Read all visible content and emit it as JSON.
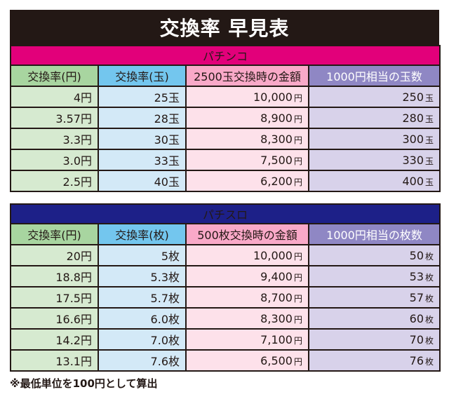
{
  "title": "交換率 早見表",
  "pachinko": {
    "section_title": "パチンコ",
    "section_color": "#e2007a",
    "headers": [
      "交換率(円)",
      "交換率(玉)",
      "2500玉交換時の金額",
      "1000円相当の玉数"
    ],
    "rows": [
      {
        "yen": "4円",
        "tama": "25玉",
        "amount": "10,000",
        "amount_unit": "円",
        "count": "250",
        "count_unit": "玉"
      },
      {
        "yen": "3.57円",
        "tama": "28玉",
        "amount": "8,900",
        "amount_unit": "円",
        "count": "280",
        "count_unit": "玉"
      },
      {
        "yen": "3.3円",
        "tama": "30玉",
        "amount": "8,300",
        "amount_unit": "円",
        "count": "300",
        "count_unit": "玉"
      },
      {
        "yen": "3.0円",
        "tama": "33玉",
        "amount": "7,500",
        "amount_unit": "円",
        "count": "330",
        "count_unit": "玉"
      },
      {
        "yen": "2.5円",
        "tama": "40玉",
        "amount": "6,200",
        "amount_unit": "円",
        "count": "400",
        "count_unit": "玉"
      }
    ]
  },
  "pachislot": {
    "section_title": "パチスロ",
    "section_color": "#1d2088",
    "headers": [
      "交換率(円)",
      "交換率(枚)",
      "500枚交換時の金額",
      "1000円相当の枚数"
    ],
    "rows": [
      {
        "yen": "20円",
        "tama": "5枚",
        "amount": "10,000",
        "amount_unit": "円",
        "count": "50",
        "count_unit": "枚"
      },
      {
        "yen": "18.8円",
        "tama": "5.3枚",
        "amount": "9,400",
        "amount_unit": "円",
        "count": "53",
        "count_unit": "枚"
      },
      {
        "yen": "17.5円",
        "tama": "5.7枚",
        "amount": "8,700",
        "amount_unit": "円",
        "count": "57",
        "count_unit": "枚"
      },
      {
        "yen": "16.6円",
        "tama": "6.0枚",
        "amount": "8,300",
        "amount_unit": "円",
        "count": "60",
        "count_unit": "枚"
      },
      {
        "yen": "14.2円",
        "tama": "7.0枚",
        "amount": "7,100",
        "amount_unit": "円",
        "count": "70",
        "count_unit": "枚"
      },
      {
        "yen": "13.1円",
        "tama": "7.6枚",
        "amount": "6,500",
        "amount_unit": "円",
        "count": "76",
        "count_unit": "枚"
      }
    ]
  },
  "footnote": "※最低単位を100円として算出"
}
